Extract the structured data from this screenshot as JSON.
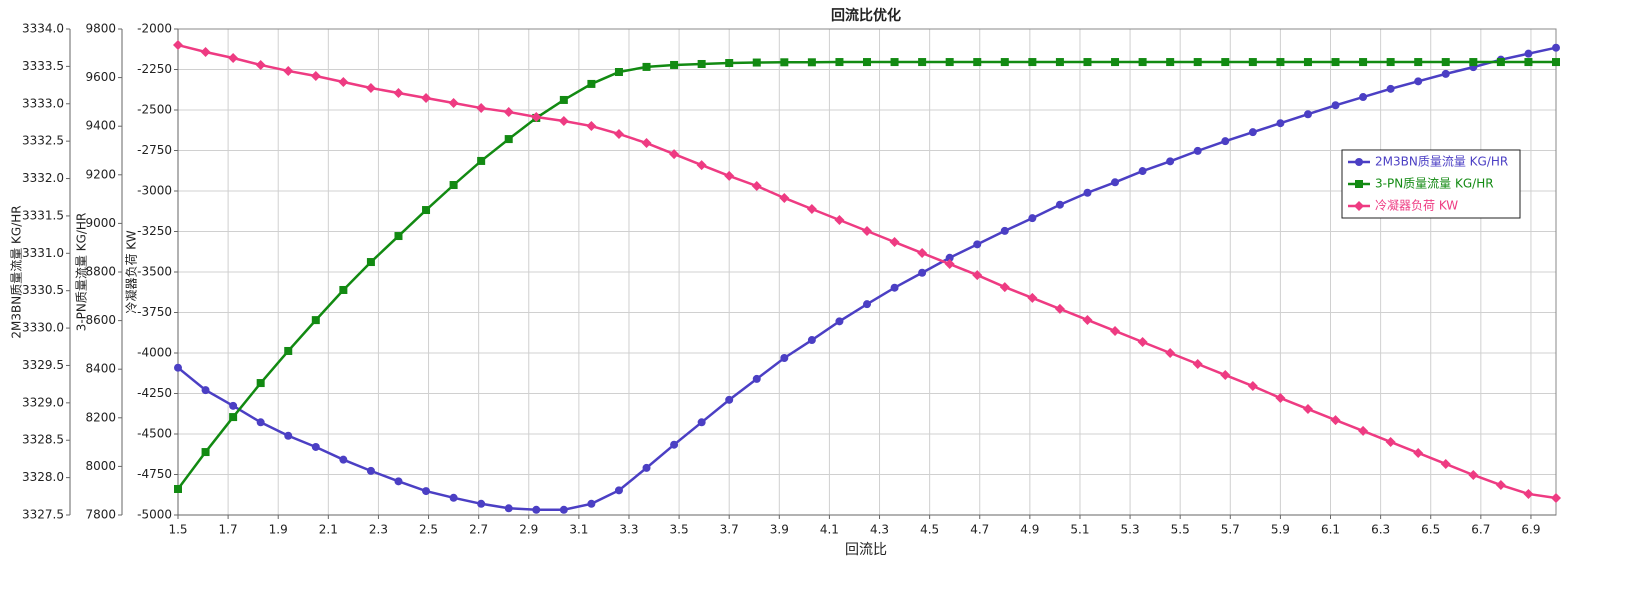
{
  "chart_data": {
    "type": "line",
    "title": "回流比优化",
    "xlabel": "回流比",
    "grid": true,
    "legend": "upper right",
    "x": [
      1.5,
      1.61,
      1.72,
      1.83,
      1.94,
      2.05,
      2.16,
      2.27,
      2.38,
      2.49,
      2.6,
      2.71,
      2.82,
      2.93,
      3.04,
      3.15,
      3.26,
      3.37,
      3.48,
      3.59,
      3.7,
      3.81,
      3.92,
      4.03,
      4.14,
      4.25,
      4.36,
      4.47,
      4.58,
      4.69,
      4.8,
      4.91,
      5.02,
      5.13,
      5.24,
      5.35,
      5.46,
      5.57,
      5.68,
      5.79,
      5.9,
      6.01,
      6.12,
      6.23,
      6.34,
      6.45,
      6.56,
      6.67,
      6.78,
      6.89,
      7.0
    ],
    "xlim": [
      1.5,
      7.0
    ],
    "xticks": [
      1.5,
      1.7,
      1.9,
      2.1,
      2.3,
      2.5,
      2.7,
      2.9,
      3.1,
      3.3,
      3.5,
      3.7,
      3.9,
      4.1,
      4.3,
      4.5,
      4.7,
      4.9,
      5.1,
      5.3,
      5.5,
      5.7,
      5.9,
      6.1,
      6.3,
      6.5,
      6.7,
      6.9
    ],
    "ylabel": "2M3BN质量流量 KG/HR",
    "ylim": [
      3327.5,
      3334.0
    ],
    "yticks": [
      {
        "value": 3327.5,
        "label": "3327.5"
      },
      {
        "value": 3328,
        "label": "3328.0"
      },
      {
        "value": 3328.5,
        "label": "3328.5"
      },
      {
        "value": 3329,
        "label": "3329.0"
      },
      {
        "value": 3329.5,
        "label": "3329.5"
      },
      {
        "value": 3330,
        "label": "3330.0"
      },
      {
        "value": 3330.5,
        "label": "3330.5"
      },
      {
        "value": 3331,
        "label": "3331.0"
      },
      {
        "value": 3331.5,
        "label": "3331.5"
      },
      {
        "value": 3332,
        "label": "3332.0"
      },
      {
        "value": 3332.5,
        "label": "3332.5"
      },
      {
        "value": 3333,
        "label": "3333.0"
      },
      {
        "value": 3333.5,
        "label": "3333.5"
      },
      {
        "value": 3334,
        "label": "3334.0"
      }
    ],
    "y2label": "3-PN质量流量 KG/HR",
    "y2lim": [
      7800,
      9800
    ],
    "y2ticks": [
      7800,
      8000,
      8200,
      8400,
      8600,
      8800,
      9000,
      9200,
      9400,
      9600,
      9800
    ],
    "y3label": "冷凝器负荷 KW",
    "y3lim": [
      -5000,
      -2000
    ],
    "y3ticks": [
      -5000,
      -4750,
      -4500,
      -4250,
      -4000,
      -3750,
      -3500,
      -3250,
      -3000,
      -2750,
      -2500,
      -2250,
      -2000
    ],
    "series": [
      {
        "name": "2M3BN质量流量 KG/HR",
        "color": "#4b3fc4",
        "marker": "circle",
        "axis": "y",
        "values": [
          3329.47,
          3329.17,
          3328.96,
          3328.74,
          3328.56,
          3328.41,
          3328.24,
          3328.09,
          3327.95,
          3327.82,
          3327.73,
          3327.65,
          3327.59,
          3327.57,
          3327.57,
          3327.65,
          3327.83,
          3328.13,
          3328.44,
          3328.74,
          3329.04,
          3329.32,
          3329.6,
          3329.84,
          3330.09,
          3330.32,
          3330.54,
          3330.74,
          3330.94,
          3331.12,
          3331.3,
          3331.47,
          3331.65,
          3331.81,
          3331.95,
          3332.1,
          3332.23,
          3332.37,
          3332.5,
          3332.62,
          3332.74,
          3332.86,
          3332.98,
          3333.09,
          3333.2,
          3333.3,
          3333.4,
          3333.49,
          3333.59,
          3333.67,
          3333.75
        ]
      },
      {
        "name": "3-PN质量流量 KG/HR",
        "color": "#128a12",
        "marker": "square",
        "axis": "y2",
        "values": [
          7907,
          8059,
          8203,
          8343,
          8475,
          8602,
          8726,
          8841,
          8948,
          9055,
          9158,
          9257,
          9347,
          9434,
          9508,
          9574,
          9623,
          9644,
          9652,
          9656,
          9660,
          9662,
          9663,
          9663,
          9664,
          9664,
          9664,
          9664,
          9664,
          9664,
          9664,
          9664,
          9664,
          9664,
          9664,
          9664,
          9664,
          9664,
          9664,
          9664,
          9664,
          9664,
          9664,
          9664,
          9664,
          9664,
          9664,
          9664,
          9664,
          9664,
          9664
        ]
      },
      {
        "name": "冷凝器负荷 KW",
        "color": "#ee3b82",
        "marker": "diamond",
        "axis": "y3",
        "values": [
          -2099,
          -2142,
          -2179,
          -2222,
          -2259,
          -2290,
          -2327,
          -2364,
          -2395,
          -2426,
          -2457,
          -2488,
          -2512,
          -2543,
          -2568,
          -2599,
          -2648,
          -2704,
          -2772,
          -2840,
          -2907,
          -2969,
          -3043,
          -3111,
          -3179,
          -3247,
          -3315,
          -3383,
          -3451,
          -3519,
          -3593,
          -3660,
          -3728,
          -3796,
          -3864,
          -3932,
          -4000,
          -4068,
          -4136,
          -4204,
          -4278,
          -4346,
          -4414,
          -4481,
          -4549,
          -4617,
          -4685,
          -4753,
          -4815,
          -4870,
          -4895
        ]
      }
    ]
  }
}
